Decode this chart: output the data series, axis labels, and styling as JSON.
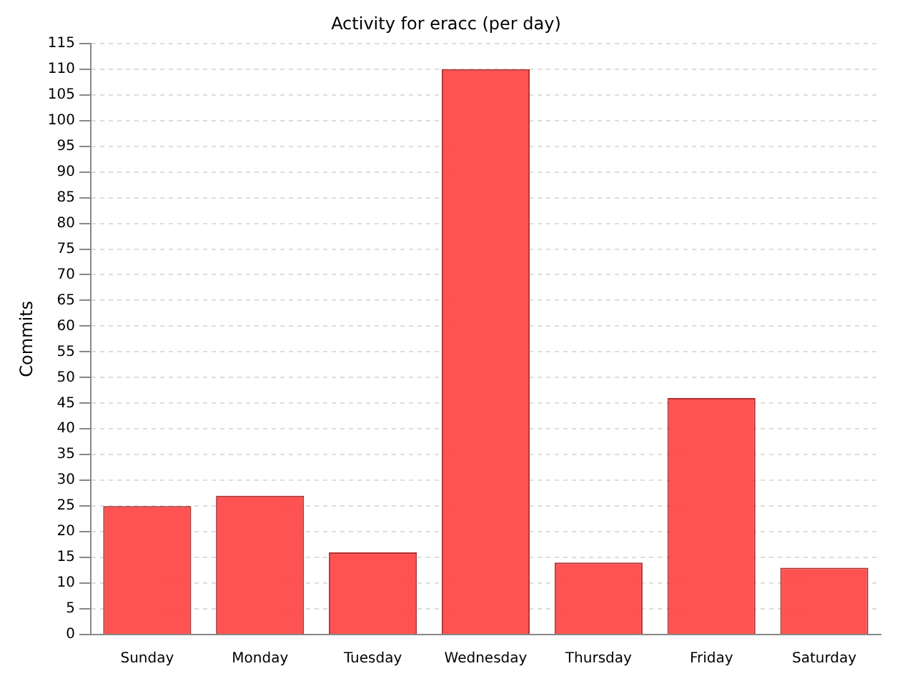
{
  "chart_data": {
    "type": "bar",
    "title": "Activity for eracc (per day)",
    "ylabel": "Commits",
    "categories": [
      "Sunday",
      "Monday",
      "Tuesday",
      "Wednesday",
      "Thursday",
      "Friday",
      "Saturday"
    ],
    "values": [
      25,
      27,
      16,
      110,
      14,
      46,
      13
    ],
    "color": "#ff4040",
    "ylim": [
      0,
      115
    ],
    "yticks": [
      0,
      5,
      10,
      15,
      20,
      25,
      30,
      35,
      40,
      45,
      50,
      55,
      60,
      65,
      70,
      75,
      80,
      85,
      90,
      95,
      100,
      105,
      110,
      115
    ],
    "grid": "y",
    "legend": false
  }
}
